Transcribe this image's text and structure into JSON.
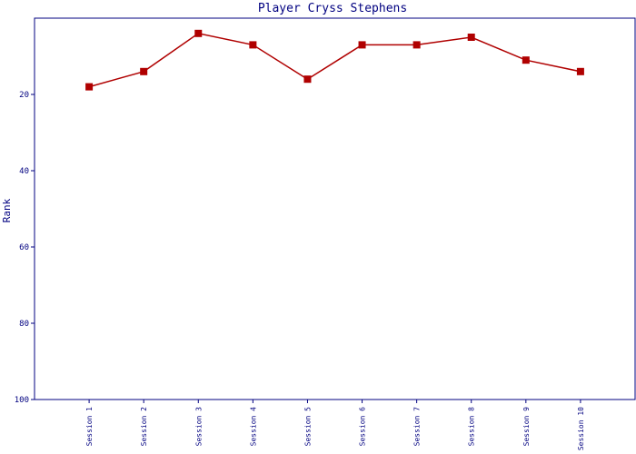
{
  "chart_data": {
    "type": "line",
    "title": "Player Cryss Stephens",
    "y_label": "Rank",
    "categories": [
      "Session 1",
      "Session 2",
      "Session 3",
      "Session 4",
      "Session 5",
      "Session 6",
      "Session 7",
      "Session 8",
      "Session 9",
      "Session 10"
    ],
    "series": [
      {
        "name": "Rank",
        "color": "#b00000",
        "values": [
          18,
          14,
          4,
          7,
          16,
          7,
          7,
          5,
          11,
          14
        ]
      }
    ],
    "ylim": [
      0,
      100
    ],
    "yticks": [
      20,
      40,
      60,
      80,
      100
    ],
    "y_inverted": true,
    "grid": false
  }
}
